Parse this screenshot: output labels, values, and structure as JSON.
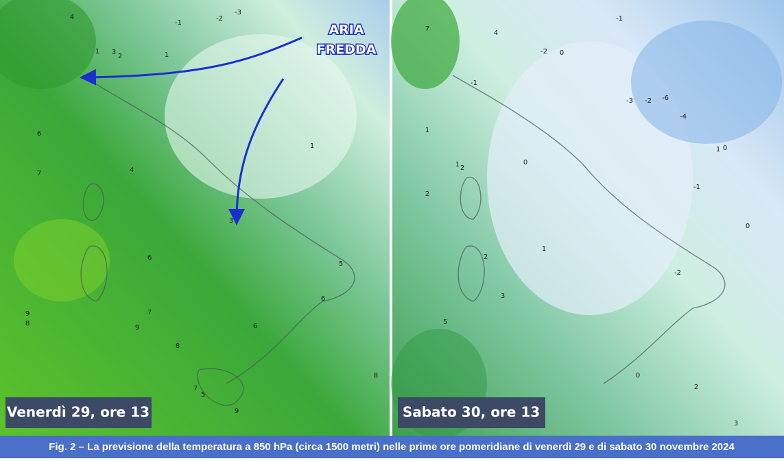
{
  "panels": [
    {
      "label": "Venerdì 29, ore 13",
      "contour_labels": [
        "4",
        "1",
        "3",
        "2",
        "1",
        "-1",
        "-2",
        "-3",
        "6",
        "7",
        "4",
        "1",
        "3",
        "6",
        "6",
        "9",
        "8",
        "9",
        "7",
        "8",
        "6",
        "7",
        "5",
        "9",
        "8",
        "5"
      ]
    },
    {
      "label": "Sabato 30, ore 13",
      "contour_labels": [
        "7",
        "4",
        "-2",
        "0",
        "-1",
        "-1",
        "1",
        "1",
        "2",
        "0",
        "2",
        "-3",
        "-2",
        "-6",
        "-4",
        "1",
        "0",
        "-1",
        "0",
        "1",
        "2",
        "3",
        "5",
        "-2",
        "0",
        "2",
        "3"
      ]
    }
  ],
  "annotation": {
    "lines": [
      "ARIA",
      "FREDDA"
    ]
  },
  "caption": "Fig. 2 – La previsione della temperatura a 850 hPa (circa 1500 metri) nelle prime ore pomeridiane di venerdì 29 e di sabato 30 novembre 2024"
}
